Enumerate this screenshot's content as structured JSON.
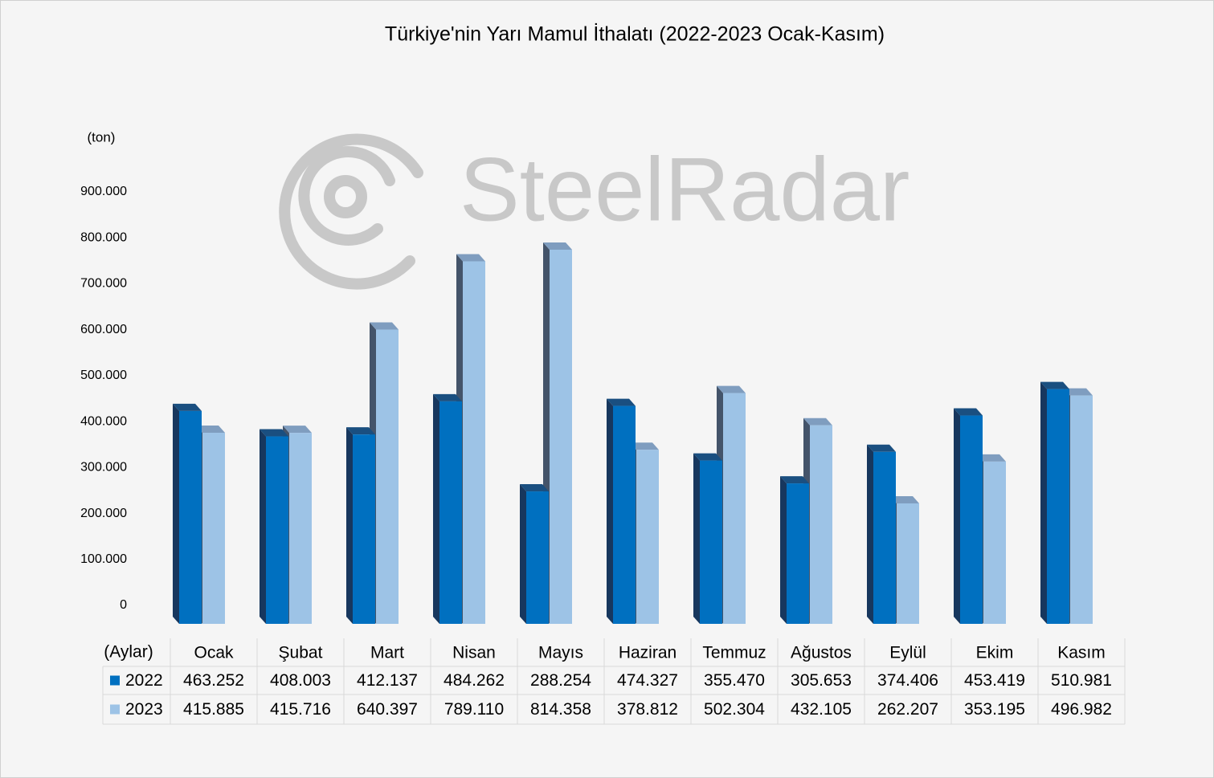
{
  "chart_data": {
    "type": "bar3d",
    "title": "Türkiye'nin Yarı Mamul İthalatı (2022-2023 Ocak-Kasım)",
    "y_label": "(ton)",
    "x_label": "(Aylar)",
    "watermark": "SteelRadar",
    "categories": [
      "Ocak",
      "Şubat",
      "Mart",
      "Nisan",
      "Mayıs",
      "Haziran",
      "Temmuz",
      "Ağustos",
      "Eylül",
      "Ekim",
      "Kasım"
    ],
    "series": [
      {
        "name": "2022",
        "color": "#0070c0",
        "side": "#17375e",
        "top": "#1a4f80",
        "values": [
          463252,
          408003,
          412137,
          484262,
          288254,
          474327,
          355470,
          305653,
          374406,
          453419,
          510981
        ],
        "value_labels": [
          "463.252",
          "408.003",
          "412.137",
          "484.262",
          "288.254",
          "474.327",
          "355.470",
          "305.653",
          "374.406",
          "453.419",
          "510.981"
        ]
      },
      {
        "name": "2023",
        "color": "#9dc3e6",
        "side": "#44546a",
        "top": "#7f9dbf",
        "values": [
          415885,
          415716,
          640397,
          789110,
          814358,
          378812,
          502304,
          432105,
          262207,
          353195,
          496982
        ],
        "value_labels": [
          "415.885",
          "415.716",
          "640.397",
          "789.110",
          "814.358",
          "378.812",
          "502.304",
          "432.105",
          "262.207",
          "353.195",
          "496.982"
        ]
      }
    ],
    "ylim": [
      0,
      900000
    ],
    "yticks": [
      0,
      {
        "value": 100000,
        "label": "100.000"
      },
      {
        "value": 200000,
        "label": "200.000"
      },
      {
        "value": 300000,
        "label": "300.000"
      },
      {
        "value": 400000,
        "label": "400.000"
      },
      {
        "value": 500000,
        "label": "500.000"
      },
      {
        "value": 600000,
        "label": "600.000"
      },
      {
        "value": 700000,
        "label": "700.000"
      },
      {
        "value": 800000,
        "label": "800.000"
      },
      {
        "value": 900000,
        "label": "900.000"
      }
    ]
  }
}
